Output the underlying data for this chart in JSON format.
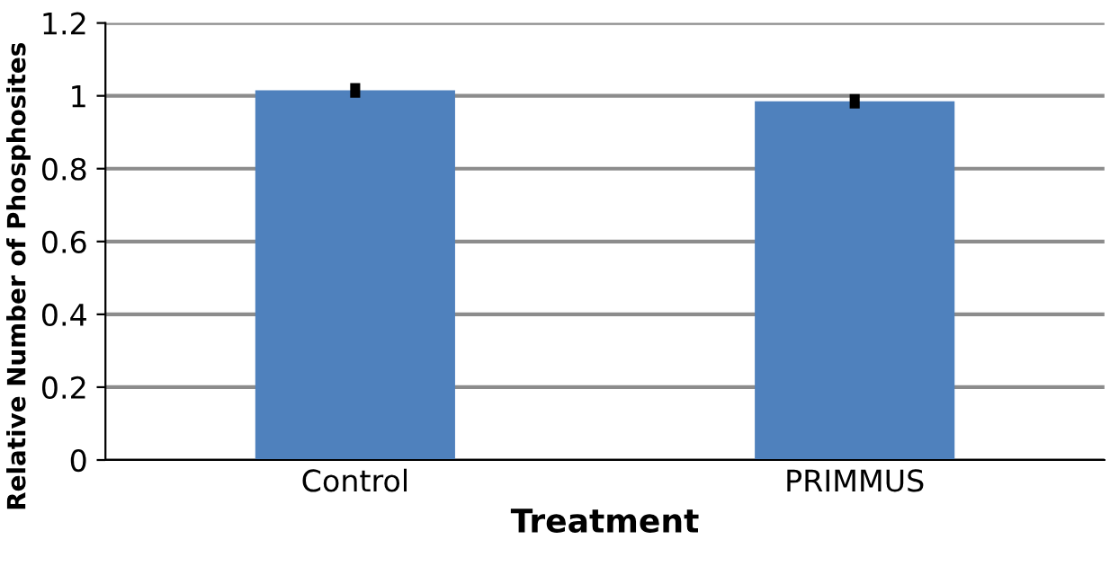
{
  "chart_data": {
    "type": "bar",
    "xlabel": "Treatment",
    "ylabel": "Relative Number of Phosphosites",
    "categories": [
      "Control",
      "PRIMMUS"
    ],
    "series": [
      {
        "color": "#4f81bd",
        "values": [
          1.015,
          0.985
        ],
        "errors": [
          0.02,
          0.02
        ]
      }
    ],
    "ylim": [
      0,
      1.2
    ],
    "yticks": [
      0,
      0.2,
      0.4,
      0.6,
      0.8,
      1,
      1.2
    ],
    "grid": "y"
  }
}
